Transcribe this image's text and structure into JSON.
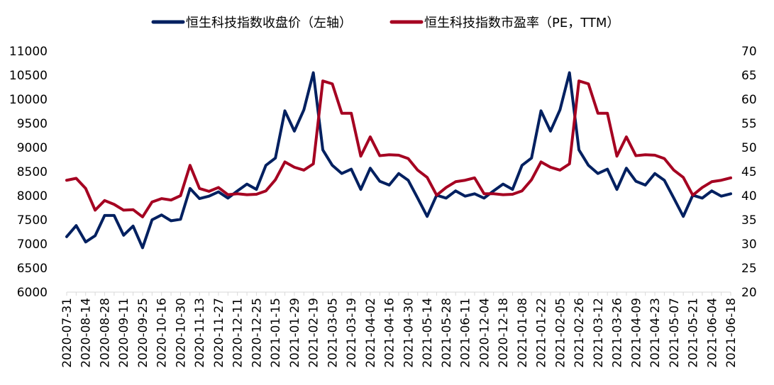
{
  "chart_data": {
    "type": "line",
    "title": "",
    "x": [
      "2020-07-31",
      "2020-08-07",
      "2020-08-14",
      "2020-08-21",
      "2020-08-28",
      "2020-09-04",
      "2020-09-11",
      "2020-09-18",
      "2020-09-25",
      "2020-10-09",
      "2020-10-16",
      "2020-10-23",
      "2020-10-30",
      "2020-11-06",
      "2020-11-13",
      "2020-11-20",
      "2020-11-27",
      "2020-12-04",
      "2020-12-11",
      "2020-12-18",
      "2020-12-25",
      "2021-01-08",
      "2021-01-15",
      "2021-01-22",
      "2021-01-29",
      "2021-02-05",
      "2021-02-19",
      "2021-02-26",
      "2021-03-05",
      "2021-03-12",
      "2021-03-19",
      "2021-03-26",
      "2021-04-02",
      "2021-04-09",
      "2021-04-16",
      "2021-04-23",
      "2021-04-30",
      "2021-05-07",
      "2021-05-14",
      "2021-05-21",
      "2021-05-28",
      "2021-06-04",
      "2021-06-11",
      "2021-06-18",
      "2020-12-04",
      "2020-12-11",
      "2020-12-18",
      "2020-12-25",
      "2021-01-08",
      "2021-01-15",
      "2021-01-22",
      "2021-01-29",
      "2021-02-05",
      "2021-02-19",
      "2021-02-26",
      "2021-03-05",
      "2021-03-12",
      "2021-03-19",
      "2021-03-26",
      "2021-04-02",
      "2021-04-09",
      "2021-04-16",
      "2021-04-23",
      "2021-04-30",
      "2021-05-07",
      "2021-05-14",
      "2021-05-21",
      "2021-05-28",
      "2021-06-04",
      "2021-06-11",
      "2021-06-18"
    ],
    "x_tick_labels": [
      "2020-07-31",
      "2020-08-14",
      "2020-08-28",
      "2020-09-11",
      "2020-09-25",
      "2020-10-16",
      "2020-10-30",
      "2020-11-13",
      "2020-11-27",
      "2020-12-11",
      "2020-12-25",
      "2021-01-15",
      "2021-01-29",
      "2021-02-19",
      "2021-03-05",
      "2021-03-19",
      "2021-04-02",
      "2021-04-16",
      "2021-04-30",
      "2021-05-14",
      "2021-05-28",
      "2021-06-11",
      "2020-12-04",
      "2020-12-18",
      "2021-01-08",
      "2021-01-22",
      "2021-02-05",
      "2021-02-26",
      "2021-03-12",
      "2021-03-26",
      "2021-04-09",
      "2021-04-23",
      "2021-05-07",
      "2021-05-21",
      "2021-06-04",
      "2021-06-18"
    ],
    "x_tick_every": 2,
    "xlabel": "",
    "ylabel_left": "",
    "ylabel_right": "",
    "ylim_left": [
      6000,
      11000
    ],
    "ylim_right": [
      20,
      70
    ],
    "yticks_left": [
      6000,
      6500,
      7000,
      7500,
      8000,
      8500,
      9000,
      9500,
      10000,
      10500,
      11000
    ],
    "yticks_right": [
      20,
      25,
      30,
      35,
      40,
      45,
      50,
      55,
      60,
      65,
      70
    ],
    "grid": false,
    "legend_position": "top",
    "series": [
      {
        "name": "恒生科技指数收盘价（左轴）",
        "axis": "left",
        "color": "#002060",
        "values": [
          7150,
          7380,
          7040,
          7170,
          7590,
          7590,
          7180,
          7370,
          6920,
          7500,
          7600,
          7480,
          7510,
          8150,
          7940,
          7990,
          8080,
          7950,
          8100,
          8240,
          8130,
          8630,
          8780,
          9760,
          9340,
          9780,
          10550,
          8950,
          8630,
          8460,
          8550,
          8130,
          8570,
          8300,
          8220,
          8460,
          8320,
          7950,
          7570,
          8010,
          7950,
          8100,
          7990,
          8040,
          7950,
          8100,
          8240,
          8130,
          8630,
          8780,
          9760,
          9340,
          9780,
          10550,
          8950,
          8630,
          8460,
          8550,
          8130,
          8570,
          8300,
          8220,
          8460,
          8320,
          7950,
          7570,
          8010,
          7950,
          8100,
          7990,
          8040
        ]
      },
      {
        "name": "恒生科技指数市盈率（PE，TTM）",
        "axis": "right",
        "color": "#A50021",
        "values": [
          43.2,
          43.6,
          41.5,
          37.0,
          39.0,
          38.2,
          37.0,
          37.1,
          35.6,
          38.7,
          39.4,
          39.1,
          40.0,
          46.3,
          41.5,
          40.9,
          41.7,
          40.2,
          40.4,
          40.2,
          40.3,
          41.0,
          43.3,
          47.0,
          45.9,
          45.3,
          46.6,
          63.8,
          63.2,
          57.1,
          57.1,
          48.2,
          52.2,
          48.3,
          48.5,
          48.4,
          47.7,
          45.3,
          43.8,
          40.1,
          41.7,
          42.9,
          43.2,
          43.7,
          40.4,
          40.4,
          40.2,
          40.3,
          41.0,
          43.3,
          47.0,
          45.9,
          45.3,
          46.6,
          63.8,
          63.2,
          57.1,
          57.1,
          48.2,
          52.2,
          48.3,
          48.5,
          48.4,
          47.7,
          45.3,
          43.8,
          40.1,
          41.7,
          42.9,
          43.2,
          43.7
        ]
      }
    ]
  }
}
